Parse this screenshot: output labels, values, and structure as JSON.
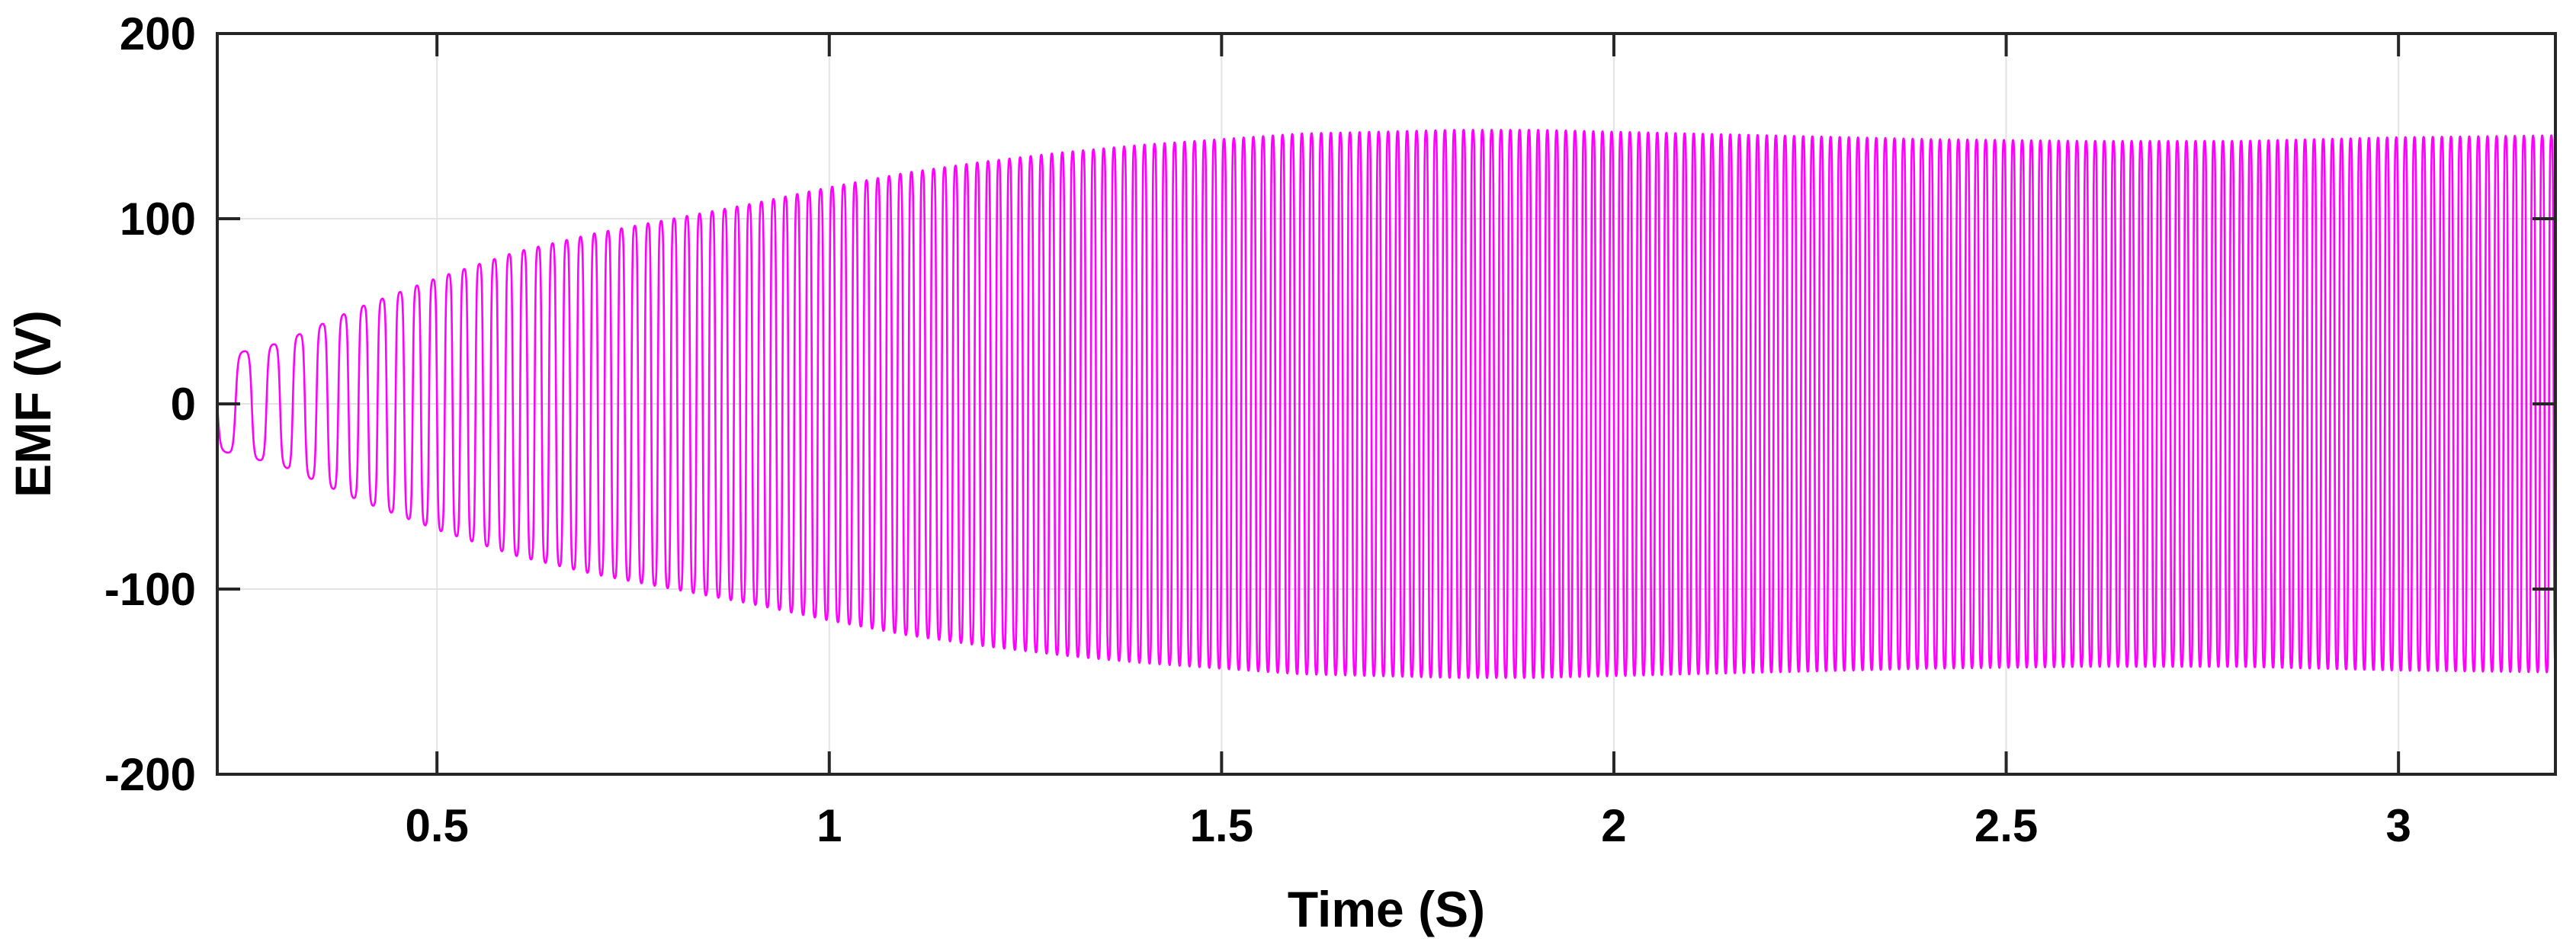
{
  "chart_data": {
    "type": "line",
    "title": "",
    "xlabel": "Time (S)",
    "ylabel": "EMF (V)",
    "xlim": [
      0.22,
      3.2
    ],
    "ylim": [
      -200,
      200
    ],
    "xticks": [
      0.5,
      1,
      1.5,
      2,
      2.5,
      3
    ],
    "xtick_labels": [
      "0.5",
      "1",
      "1.5",
      "2",
      "2.5",
      "3"
    ],
    "yticks": [
      -200,
      -100,
      0,
      100,
      200
    ],
    "ytick_labels": [
      "-200",
      "-100",
      "0",
      "100",
      "200"
    ],
    "grid": true,
    "legend": "none",
    "series": [
      {
        "color": "#ff00ff",
        "description": "oscillating EMF with growing amplitude; frequency increases over time",
        "envelope": {
          "t": [
            0.22,
            0.3,
            0.4,
            0.5,
            0.6,
            0.7,
            0.8,
            0.9,
            1.0,
            1.1,
            1.2,
            1.3,
            1.4,
            1.5,
            1.6,
            1.7,
            1.8,
            1.9,
            2.0,
            2.2,
            2.4,
            2.6,
            2.8,
            3.0,
            3.2
          ],
          "amplitude": [
            25,
            33,
            52,
            68,
            82,
            92,
            100,
            108,
            117,
            125,
            131,
            136,
            140,
            143,
            146,
            147,
            148,
            148,
            147,
            145,
            143,
            142,
            142,
            144,
            145
          ]
        },
        "frequency": {
          "t": [
            0.22,
            0.3,
            0.5,
            1.0,
            1.5,
            2.0,
            3.2
          ],
          "hz": [
            20,
            30,
            50,
            68,
            80,
            86,
            86
          ]
        }
      }
    ]
  }
}
